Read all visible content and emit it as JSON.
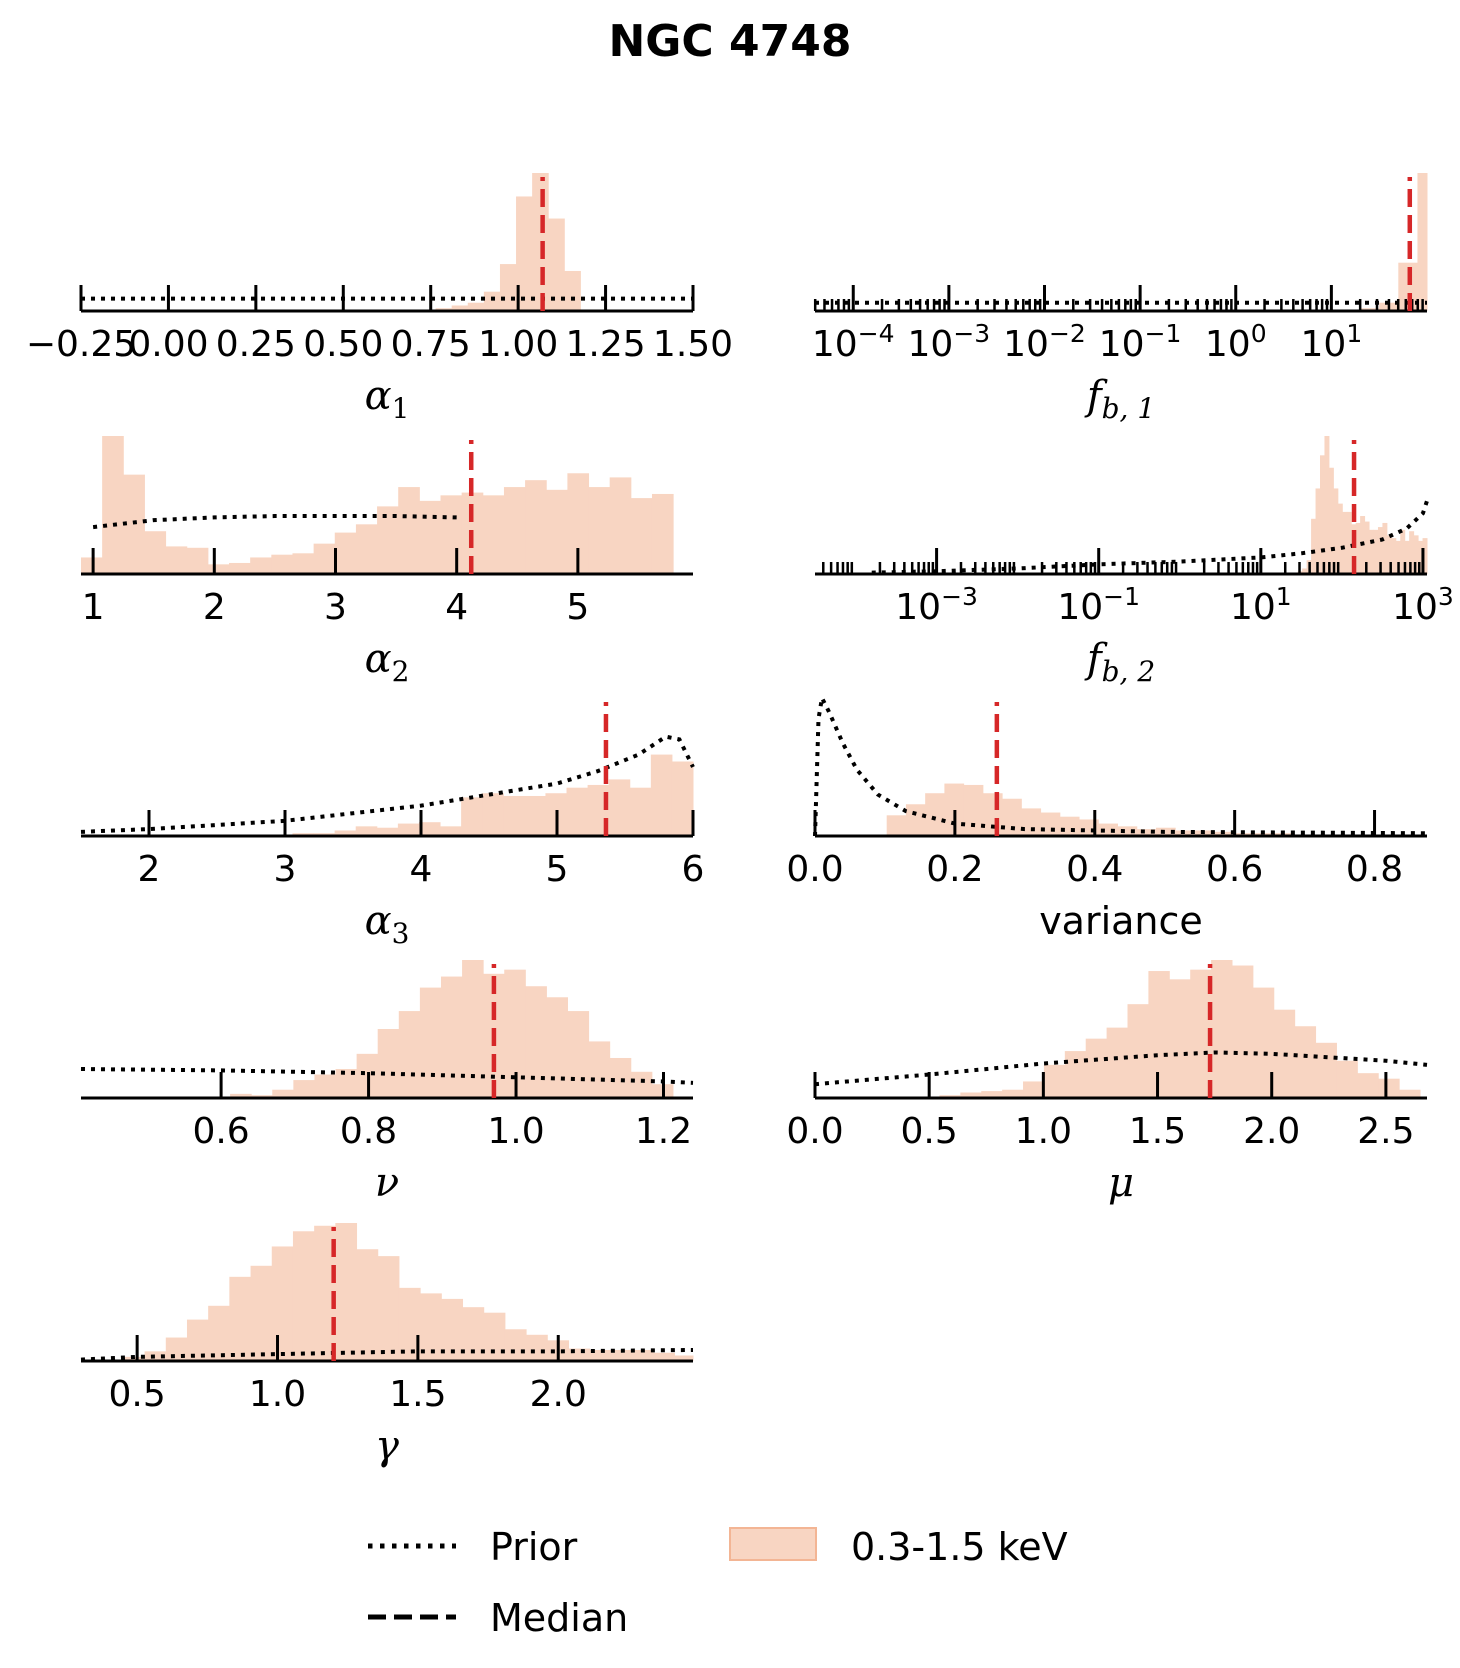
{
  "figure": {
    "title": "NGC 4748"
  },
  "legend": {
    "placement": "bottom-center",
    "items": [
      {
        "label": "Prior",
        "style": "dotted",
        "color": "#000000"
      },
      {
        "label": "Median",
        "style": "dashed",
        "color": "#000000"
      },
      {
        "label": "0.3-1.5 keV",
        "style": "patch",
        "color": "#f8d5c2",
        "edge": "#f3b594"
      }
    ]
  },
  "colors": {
    "hist_fill": "#f8d5c2",
    "median": "#d62728",
    "prior": "#000000",
    "axis": "#000000"
  },
  "chart_data": [
    {
      "type": "bar",
      "panel": "alpha1",
      "xlabel": "α",
      "xlabel_sub": "1",
      "scale": "linear",
      "xlim": [
        -0.25,
        1.5
      ],
      "ticks": [
        -0.25,
        0.0,
        0.25,
        0.5,
        0.75,
        1.0,
        1.25,
        1.5
      ],
      "tick_labels": [
        "−0.25",
        "0.00",
        "0.25",
        "0.50",
        "0.75",
        "1.00",
        "1.25",
        "1.50"
      ],
      "bins": {
        "start": 0.58,
        "width": 0.046,
        "heights": [
          0.01,
          0.01,
          0.01,
          0.01,
          0.02,
          0.04,
          0.06,
          0.14,
          0.34,
          0.83,
          1.0,
          0.67,
          0.29,
          0.0
        ]
      },
      "median": 1.07,
      "prior": {
        "x": [
          -0.25,
          1.5
        ],
        "y": [
          0.09,
          0.09
        ]
      }
    },
    {
      "type": "bar",
      "panel": "fb1",
      "xlabel": "f",
      "xlabel_sub": "b, 1",
      "scale": "log",
      "xlim_log10": [
        -4.4,
        2.0
      ],
      "ticks_log10": [
        -4,
        -3,
        -2,
        -1,
        0,
        1
      ],
      "tick_labels": [
        [
          "10",
          "−4"
        ],
        [
          "10",
          "−3"
        ],
        [
          "10",
          "−2"
        ],
        [
          "10",
          "−1"
        ],
        [
          "10",
          "0"
        ],
        [
          "10",
          "1"
        ]
      ],
      "bins_log10": {
        "start": 1.1,
        "width": 0.2,
        "heights": [
          0.01,
          0.02,
          0.06,
          0.35,
          1.0
        ]
      },
      "median_log10": 1.82,
      "prior": {
        "x": [
          -4.4,
          2.0
        ],
        "y": [
          0.06,
          0.06
        ]
      }
    },
    {
      "type": "bar",
      "panel": "alpha2",
      "xlabel": "α",
      "xlabel_sub": "2",
      "scale": "linear",
      "xlim": [
        0.9,
        5.95
      ],
      "ticks": [
        1,
        2,
        3,
        4,
        5
      ],
      "tick_labels": [
        "1",
        "2",
        "3",
        "4",
        "5"
      ],
      "bins": {
        "start": 0.9,
        "width": 0.1745,
        "heights": [
          0.12,
          1.0,
          0.72,
          0.31,
          0.2,
          0.19,
          0.07,
          0.08,
          0.12,
          0.14,
          0.15,
          0.22,
          0.3,
          0.36,
          0.49,
          0.63,
          0.53,
          0.57,
          0.59,
          0.57,
          0.63,
          0.68,
          0.61,
          0.73,
          0.63,
          0.7,
          0.55,
          0.58
        ]
      },
      "median": 4.12,
      "prior": {
        "x": [
          1.0,
          1.5,
          2.0,
          2.5,
          3.0,
          3.5,
          4.0
        ],
        "y": [
          0.34,
          0.39,
          0.41,
          0.42,
          0.42,
          0.42,
          0.41
        ]
      }
    },
    {
      "type": "bar",
      "panel": "fb2",
      "xlabel": "f",
      "xlabel_sub": "b, 2",
      "scale": "log",
      "xlim_log10": [
        -4.5,
        3.05
      ],
      "ticks_log10": [
        -3,
        -1,
        1,
        3
      ],
      "tick_labels": [
        [
          "10",
          "−3"
        ],
        [
          "10",
          "−1"
        ],
        [
          "10",
          "1"
        ],
        [
          "10",
          "3"
        ]
      ],
      "bins_log10": {
        "start": 1.4,
        "width": 0.055,
        "heights": [
          0.01,
          0.02,
          0.04,
          0.1,
          0.4,
          0.62,
          0.86,
          1.0,
          0.77,
          0.62,
          0.51,
          0.45,
          0.45,
          0.36,
          0.37,
          0.42,
          0.38,
          0.32,
          0.32,
          0.34,
          0.37,
          0.28,
          0.26,
          0.24,
          0.32,
          0.24,
          0.31,
          0.28,
          0.24,
          0.26,
          0.33,
          0.28,
          0.24,
          0.27,
          0.32
        ]
      },
      "median_log10": 2.15,
      "prior": {
        "x": [
          -3.8,
          -3.0,
          -2.0,
          -1.0,
          0.0,
          1.0,
          1.5,
          2.0,
          2.5,
          2.8,
          3.0,
          3.05
        ],
        "y": [
          0.01,
          0.02,
          0.04,
          0.07,
          0.09,
          0.12,
          0.15,
          0.19,
          0.25,
          0.33,
          0.44,
          0.53
        ]
      }
    },
    {
      "type": "bar",
      "panel": "alpha3",
      "xlabel": "α",
      "xlabel_sub": "3",
      "scale": "linear",
      "xlim": [
        1.5,
        6.0
      ],
      "ticks": [
        2,
        3,
        4,
        5,
        6
      ],
      "tick_labels": [
        "2",
        "3",
        "4",
        "5",
        "6"
      ],
      "bins": {
        "start": 2.9,
        "width": 0.155,
        "heights": [
          0.01,
          0.02,
          0.02,
          0.04,
          0.07,
          0.06,
          0.09,
          0.1,
          0.07,
          0.28,
          0.31,
          0.29,
          0.29,
          0.31,
          0.35,
          0.37,
          0.41,
          0.35,
          0.59,
          0.54,
          0.61,
          0.54,
          0.76,
          0.77,
          0.82,
          1.0
        ]
      },
      "median": 5.36,
      "prior": {
        "x": [
          1.5,
          2.0,
          3.0,
          4.0,
          4.5,
          5.0,
          5.3,
          5.6,
          5.8,
          5.9,
          6.0
        ],
        "y": [
          0.03,
          0.05,
          0.11,
          0.22,
          0.3,
          0.38,
          0.47,
          0.59,
          0.72,
          0.7,
          0.5
        ]
      }
    },
    {
      "type": "bar",
      "panel": "variance",
      "xlabel": "variance",
      "xlabel_sub": "",
      "scale": "linear",
      "xlim": [
        0.0,
        0.875
      ],
      "ticks": [
        0.0,
        0.2,
        0.4,
        0.6,
        0.8
      ],
      "tick_labels": [
        "0.0",
        "0.2",
        "0.4",
        "0.6",
        "0.8"
      ],
      "bins": {
        "start": 0.075,
        "width": 0.0275,
        "heights": [
          0.01,
          0.15,
          0.23,
          0.31,
          0.38,
          0.37,
          0.31,
          0.27,
          0.2,
          0.17,
          0.14,
          0.12,
          0.09,
          0.07,
          0.05,
          0.06,
          0.04,
          0.04,
          0.03,
          0.02,
          0.02,
          0.02,
          0.01,
          0.01,
          0.01,
          0.01,
          0.01,
          0.01,
          0.01
        ]
      },
      "median": 0.26,
      "prior": {
        "x": [
          0.0,
          0.005,
          0.01,
          0.02,
          0.04,
          0.06,
          0.09,
          0.13,
          0.2,
          0.3,
          0.5,
          0.875
        ],
        "y": [
          0.0,
          0.85,
          1.0,
          0.9,
          0.67,
          0.48,
          0.3,
          0.18,
          0.09,
          0.05,
          0.03,
          0.02
        ]
      }
    },
    {
      "type": "bar",
      "panel": "nu",
      "xlabel": "ν",
      "xlabel_sub": "",
      "scale": "linear",
      "xlim": [
        0.41,
        1.24
      ],
      "ticks": [
        0.6,
        0.8,
        1.0,
        1.2
      ],
      "tick_labels": [
        "0.6",
        "0.8",
        "1.0",
        "1.2"
      ],
      "bins": {
        "start": 0.555,
        "width": 0.0286,
        "heights": [
          0.01,
          0.01,
          0.03,
          0.02,
          0.06,
          0.13,
          0.17,
          0.21,
          0.32,
          0.5,
          0.63,
          0.8,
          0.88,
          1.0,
          0.9,
          0.93,
          0.81,
          0.73,
          0.63,
          0.41,
          0.29,
          0.19,
          0.1
        ]
      },
      "median": 0.97,
      "prior": {
        "x": [
          0.41,
          0.6,
          0.8,
          1.0,
          1.2,
          1.24
        ],
        "y": [
          0.21,
          0.2,
          0.18,
          0.15,
          0.12,
          0.11
        ]
      }
    },
    {
      "type": "bar",
      "panel": "mu",
      "xlabel": "μ",
      "xlabel_sub": "",
      "scale": "linear",
      "xlim": [
        0.0,
        2.68
      ],
      "ticks": [
        0.0,
        0.5,
        1.0,
        1.5,
        2.0,
        2.5
      ],
      "tick_labels": [
        "0.0",
        "0.5",
        "1.0",
        "1.5",
        "2.0",
        "2.5"
      ],
      "bins": {
        "start": 0.545,
        "width": 0.0915,
        "heights": [
          0.02,
          0.04,
          0.05,
          0.06,
          0.12,
          0.24,
          0.34,
          0.43,
          0.51,
          0.68,
          0.92,
          0.86,
          0.93,
          1.0,
          0.96,
          0.8,
          0.64,
          0.52,
          0.4,
          0.27,
          0.18,
          0.14,
          0.06
        ]
      },
      "median": 1.73,
      "prior": {
        "x": [
          0.0,
          0.5,
          1.0,
          1.5,
          1.75,
          2.0,
          2.5,
          2.68
        ],
        "y": [
          0.1,
          0.17,
          0.25,
          0.31,
          0.33,
          0.32,
          0.27,
          0.24
        ]
      }
    },
    {
      "type": "bar",
      "panel": "gamma",
      "xlabel": "γ",
      "xlabel_sub": "",
      "scale": "linear",
      "xlim": [
        0.3,
        2.48
      ],
      "ticks": [
        0.5,
        1.0,
        1.5,
        2.0
      ],
      "tick_labels": [
        "0.5",
        "1.0",
        "1.5",
        "2.0"
      ],
      "bins": {
        "start": 0.3,
        "width": 0.0755,
        "heights": [
          0.0,
          0.01,
          0.03,
          0.07,
          0.17,
          0.3,
          0.4,
          0.61,
          0.69,
          0.83,
          0.94,
          0.98,
          1.0,
          0.81,
          0.76,
          0.53,
          0.49,
          0.45,
          0.39,
          0.35,
          0.23,
          0.19,
          0.15,
          0.09,
          0.08,
          0.08,
          0.08,
          0.06,
          0.04
        ]
      },
      "median": 1.2,
      "prior": {
        "x": [
          0.3,
          0.5,
          1.0,
          1.5,
          2.0,
          2.48
        ],
        "y": [
          0.01,
          0.03,
          0.05,
          0.07,
          0.07,
          0.08
        ]
      }
    }
  ]
}
